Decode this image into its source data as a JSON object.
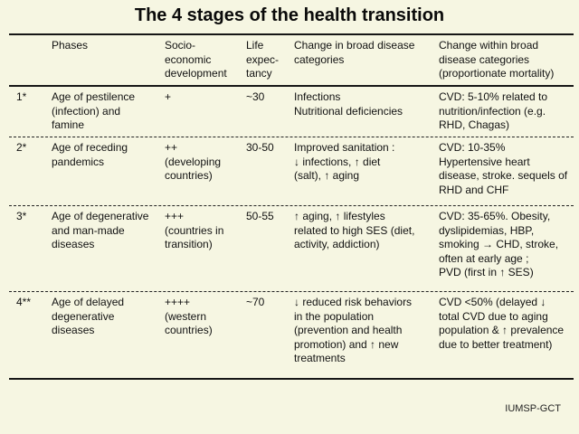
{
  "title": "The 4 stages of the health transition",
  "colors": {
    "background": "#f6f6e2",
    "text": "#111111",
    "rule_line": "#161616"
  },
  "table": {
    "headers": {
      "stage": "",
      "phases": "Phases",
      "socio": "Socio-\neconomic\ndevelopment",
      "life": "Life\nexpec-\ntancy",
      "broad": "Change in broad disease\ncategories",
      "within": "Change within broad\ndisease categories\n(proportionate mortality)"
    },
    "rows": [
      [
        "1*",
        "Age of pestilence\n(infection) and\nfamine",
        "+",
        "~30",
        "Infections\nNutritional deficiencies",
        "CVD: 5-10% related to\nnutrition/infection (e.g.\nRHD, Chagas)"
      ],
      [
        "2*",
        "Age of receding\npandemics",
        "++\n(developing\ncountries)",
        "30-50",
        "Improved sanitation :\n↓ infections, ↑ diet\n(salt), ↑ aging",
        "CVD: 10-35%\nHypertensive heart\ndisease, stroke. sequels of\nRHD and CHF"
      ],
      [
        "3*",
        "Age of degenerative\nand man-made\ndiseases",
        "+++\n(countries in\ntransition)",
        "50-55",
        "↑ aging, ↑ lifestyles\nrelated to high SES (diet,\nactivity, addiction)",
        "CVD: 35-65%. Obesity,\ndyslipidemias, HBP,\nsmoking → CHD, stroke,\noften at early age ;\nPVD (first in ↑ SES)"
      ],
      [
        "4**",
        "Age of delayed\ndegenerative\ndiseases",
        "++++\n(western\ncountries)",
        "~70",
        "↓ reduced risk behaviors\nin the population\n(prevention and health\npromotion) and ↑ new\ntreatments",
        "CVD <50% (delayed ↓\ntotal CVD due to aging\npopulation & ↑ prevalence\ndue to better treatment)"
      ]
    ]
  },
  "footer": "IUMSP-GCT"
}
